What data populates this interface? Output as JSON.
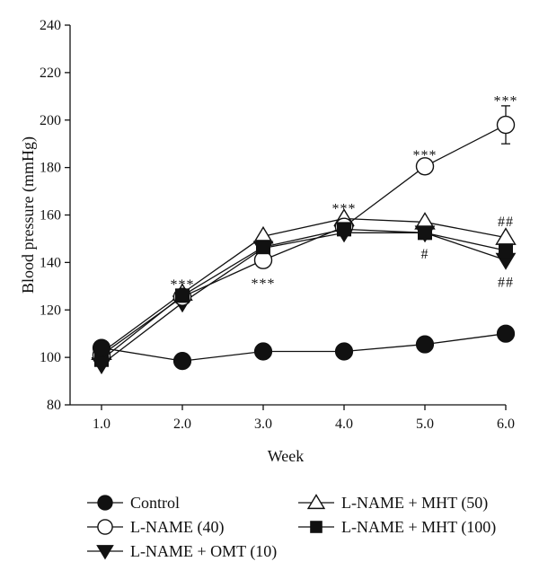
{
  "chart_data": {
    "type": "line",
    "xlabel": "Week",
    "ylabel": "Blood pressure (mmHg)",
    "xlim": [
      1.0,
      6.0
    ],
    "ylim": [
      80,
      240
    ],
    "x_ticks": [
      "1.0",
      "2.0",
      "3.0",
      "4.0",
      "5.0",
      "6.0"
    ],
    "y_ticks": [
      "80",
      "100",
      "120",
      "140",
      "160",
      "180",
      "200",
      "220",
      "240"
    ],
    "x": [
      1.0,
      2.0,
      3.0,
      4.0,
      5.0,
      6.0
    ],
    "grid": false,
    "legend_position": "bottom",
    "series": [
      {
        "name": "Control",
        "marker": "filled-circle",
        "values": [
          104,
          98.5,
          102.5,
          102.5,
          105.5,
          110
        ]
      },
      {
        "name": "L-NAME (40)",
        "marker": "open-circle",
        "values": [
          101,
          125.5,
          141,
          155,
          180.5,
          198
        ],
        "error": [
          null,
          null,
          null,
          null,
          3,
          8
        ]
      },
      {
        "name": "L-NAME + OMT (10)",
        "marker": "filled-triangle-down",
        "values": [
          97,
          123,
          146,
          152.5,
          152.5,
          141
        ]
      },
      {
        "name": "L-NAME + MHT (50)",
        "marker": "open-triangle-up",
        "values": [
          102,
          127,
          151,
          158.5,
          157,
          150.5
        ]
      },
      {
        "name": "L-NAME + MHT (100)",
        "marker": "filled-square",
        "values": [
          99,
          126,
          146.5,
          154,
          152.5,
          145
        ]
      }
    ],
    "annotations": [
      {
        "text": "***",
        "x": 2.0,
        "y": 131
      },
      {
        "text": "***",
        "x": 3.0,
        "y": 131.5
      },
      {
        "text": "***",
        "x": 4.0,
        "y": 163
      },
      {
        "text": "***",
        "x": 5.0,
        "y": 185.5
      },
      {
        "text": "***",
        "x": 6.0,
        "y": 208.5
      },
      {
        "text": "##",
        "x": 6.0,
        "y": 157.5
      },
      {
        "text": "#",
        "x": 5.0,
        "y": 144
      },
      {
        "text": "##",
        "x": 6.0,
        "y": 132
      }
    ]
  }
}
